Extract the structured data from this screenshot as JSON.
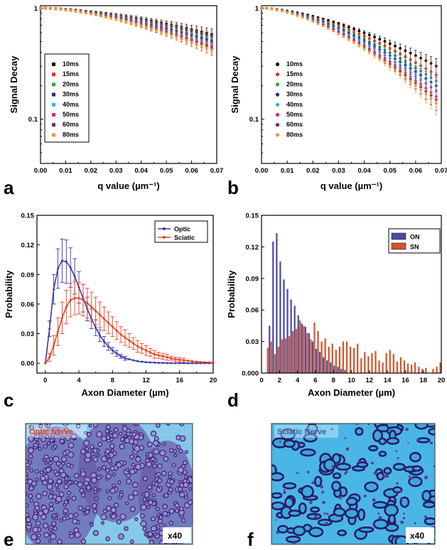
{
  "panels": {
    "a": "a",
    "b": "b",
    "c": "c",
    "d": "d",
    "e": "e",
    "f": "f"
  },
  "colors": {
    "series": [
      "#000000",
      "#e8301e",
      "#22a84a",
      "#2b2a8e",
      "#2ab3e6",
      "#e0218a",
      "#6b2a6b",
      "#f39a2a"
    ],
    "optic": "#3a3aa8",
    "sciatic": "#e84020",
    "hist_on": "#4a4aa6",
    "hist_sn": "#d2552a",
    "tissue_bg_e": "#86c8e8",
    "tissue_bg_f": "#4ab6e6",
    "tissue_cell": "#4a2e8a",
    "photo_label_e": "#e04020",
    "photo_label_f": "#3060b0"
  },
  "photos": {
    "e": {
      "label": "Optic Nerve",
      "mag": "x40"
    },
    "f": {
      "label": "Sciatic Nerve",
      "mag": "x40"
    }
  },
  "chart_data": [
    {
      "panel": "a",
      "type": "scatter",
      "scale_y": "log",
      "xlabel": "q value (µm⁻¹)",
      "ylabel": "Signal Decay",
      "xlim": [
        0.0,
        0.07
      ],
      "ylim": [
        0.04,
        1.05
      ],
      "xticks": [
        "0.00",
        "0.01",
        "0.02",
        "0.03",
        "0.04",
        "0.05",
        "0.06",
        "0.07"
      ],
      "yticks": [
        {
          "v": 1,
          "label": "1"
        },
        {
          "v": 0.1,
          "label": "0.1"
        }
      ],
      "legend": "center-left",
      "marker": "square",
      "q_start": 0.0,
      "q_step": 0.002,
      "n_points": 35,
      "series": [
        {
          "name": "10ms",
          "end_value": 0.58,
          "err": 0.07
        },
        {
          "name": "15ms",
          "end_value": 0.55,
          "err": 0.07
        },
        {
          "name": "20ms",
          "end_value": 0.52,
          "err": 0.06
        },
        {
          "name": "30ms",
          "end_value": 0.5,
          "err": 0.06
        },
        {
          "name": "40ms",
          "end_value": 0.48,
          "err": 0.06
        },
        {
          "name": "50ms",
          "end_value": 0.46,
          "err": 0.06
        },
        {
          "name": "60ms",
          "end_value": 0.44,
          "err": 0.06
        },
        {
          "name": "80ms",
          "end_value": 0.42,
          "err": 0.05
        }
      ]
    },
    {
      "panel": "b",
      "type": "scatter",
      "scale_y": "log",
      "xlabel": "q value (µm⁻¹)",
      "ylabel": "Signal Decay",
      "xlim": [
        0.0,
        0.07
      ],
      "ylim": [
        0.04,
        1.05
      ],
      "xticks": [
        "0.00",
        "0.01",
        "0.02",
        "0.03",
        "0.04",
        "0.05",
        "0.06",
        "0.07"
      ],
      "yticks": [
        {
          "v": 1,
          "label": "1"
        },
        {
          "v": 0.1,
          "label": "0.1"
        }
      ],
      "legend": "center",
      "marker": "circle",
      "q_start": 0.0,
      "q_step": 0.002,
      "n_points": 35,
      "series": [
        {
          "name": "10ms",
          "end_value": 0.3,
          "err": 0.05
        },
        {
          "name": "15ms",
          "end_value": 0.25,
          "err": 0.05
        },
        {
          "name": "20ms",
          "end_value": 0.22,
          "err": 0.04
        },
        {
          "name": "30ms",
          "end_value": 0.2,
          "err": 0.04
        },
        {
          "name": "40ms",
          "end_value": 0.18,
          "err": 0.04
        },
        {
          "name": "50ms",
          "end_value": 0.16,
          "err": 0.04
        },
        {
          "name": "60ms",
          "end_value": 0.15,
          "err": 0.03
        },
        {
          "name": "80ms",
          "end_value": 0.14,
          "err": 0.03
        }
      ]
    },
    {
      "panel": "c",
      "type": "line",
      "xlabel": "Axon Diameter (µm)",
      "ylabel": "Probability",
      "xlim": [
        -1,
        20
      ],
      "ylim": [
        -0.01,
        0.15
      ],
      "xticks": [
        0,
        4,
        8,
        12,
        16,
        20
      ],
      "yticks": [
        "0.00",
        "0.03",
        "0.06",
        "0.09",
        "0.12",
        "0.15"
      ],
      "legend": "top-right",
      "x": [
        0.0,
        0.5,
        1.0,
        1.5,
        2.0,
        2.5,
        3.0,
        3.5,
        4.0,
        4.5,
        5.0,
        5.5,
        6.0,
        6.5,
        7.0,
        7.5,
        8.0,
        8.5,
        9.0,
        9.5,
        10.0,
        10.5,
        11.0,
        11.5,
        12.0,
        12.5,
        13.0,
        13.5,
        14.0,
        14.5,
        15.0,
        15.5,
        16.0,
        16.5,
        17.0,
        17.5,
        18.0,
        18.5,
        19.0,
        19.5,
        20.0
      ],
      "series": [
        {
          "name": "Optic",
          "values": [
            0.0,
            0.035,
            0.075,
            0.096,
            0.104,
            0.103,
            0.097,
            0.088,
            0.077,
            0.066,
            0.055,
            0.045,
            0.036,
            0.028,
            0.022,
            0.017,
            0.013,
            0.01,
            0.007,
            0.005,
            0.004,
            0.003,
            0.002,
            0.0015,
            0.001,
            0.0008,
            0.0006,
            0.0004,
            0.0003,
            0.0002,
            0.0001,
            0.0001,
            0.0,
            0.0,
            0.0,
            0.0,
            0.0,
            0.0,
            0.0,
            0.0,
            0.0
          ],
          "err": [
            0.0,
            0.008,
            0.015,
            0.02,
            0.022,
            0.022,
            0.02,
            0.018,
            0.016,
            0.014,
            0.012,
            0.01,
            0.008,
            0.006,
            0.005,
            0.004,
            0.003,
            0.003,
            0.002,
            0.002,
            0.001,
            0.001,
            0.001,
            0.001,
            0.001,
            0.0,
            0.0,
            0.0,
            0.0,
            0.0,
            0.0,
            0.0,
            0.0,
            0.0,
            0.0,
            0.0,
            0.0,
            0.0,
            0.0,
            0.0,
            0.0
          ]
        },
        {
          "name": "Sciatic",
          "values": [
            0.0,
            0.006,
            0.018,
            0.032,
            0.046,
            0.057,
            0.064,
            0.066,
            0.066,
            0.064,
            0.061,
            0.057,
            0.053,
            0.049,
            0.045,
            0.041,
            0.037,
            0.033,
            0.029,
            0.026,
            0.023,
            0.02,
            0.017,
            0.015,
            0.013,
            0.011,
            0.009,
            0.008,
            0.007,
            0.006,
            0.005,
            0.004,
            0.0035,
            0.003,
            0.0025,
            0.002,
            0.0015,
            0.0012,
            0.001,
            0.0008,
            0.0006
          ],
          "err": [
            0.0,
            0.004,
            0.01,
            0.014,
            0.016,
            0.017,
            0.017,
            0.017,
            0.016,
            0.016,
            0.015,
            0.015,
            0.014,
            0.013,
            0.012,
            0.011,
            0.01,
            0.009,
            0.008,
            0.008,
            0.007,
            0.006,
            0.006,
            0.005,
            0.005,
            0.004,
            0.004,
            0.003,
            0.003,
            0.003,
            0.002,
            0.002,
            0.002,
            0.002,
            0.001,
            0.001,
            0.001,
            0.001,
            0.001,
            0.001,
            0.001
          ]
        }
      ]
    },
    {
      "panel": "d",
      "type": "bar",
      "xlabel": "Axon Diameter (µm)",
      "ylabel": "Probability",
      "xlim": [
        0,
        20
      ],
      "ylim": [
        0,
        0.15
      ],
      "xticks": [
        0,
        2,
        4,
        6,
        8,
        10,
        12,
        14,
        16,
        18,
        20
      ],
      "yticks": [
        "0.000",
        "0.03",
        "0.06",
        "0.09",
        "0.12",
        "0.15"
      ],
      "legend": "top-right",
      "bin_centers": [
        0.6,
        1.0,
        1.4,
        1.8,
        2.2,
        2.6,
        3.0,
        3.4,
        3.8,
        4.2,
        4.6,
        5.0,
        5.4,
        5.8,
        6.2,
        6.6,
        7.0,
        7.4,
        7.8,
        8.2,
        8.6,
        9.0,
        9.4,
        9.8,
        10.2,
        10.6,
        11.0,
        11.4,
        11.8,
        12.2,
        12.6,
        13.0,
        13.4,
        13.8,
        14.2,
        14.6,
        15.0,
        15.4,
        15.8,
        16.2,
        16.6,
        17.0,
        17.4,
        17.8,
        18.2,
        18.6,
        19.0,
        19.4,
        19.8
      ],
      "series": [
        {
          "name": "ON",
          "values": [
            0.0,
            0.045,
            0.125,
            0.133,
            0.106,
            0.089,
            0.08,
            0.07,
            0.064,
            0.055,
            0.047,
            0.044,
            0.038,
            0.03,
            0.023,
            0.02,
            0.015,
            0.012,
            0.01,
            0.007,
            0.006,
            0.004,
            0.003,
            0.0,
            0.0,
            0.0,
            0.0,
            0.0,
            0.0,
            0.0,
            0.0,
            0.0,
            0.0,
            0.0,
            0.0,
            0.0,
            0.0,
            0.0,
            0.0,
            0.0,
            0.0,
            0.0,
            0.0,
            0.0,
            0.0,
            0.0,
            0.0,
            0.0,
            0.0
          ]
        },
        {
          "name": "SN",
          "values": [
            0.024,
            0.03,
            0.018,
            0.025,
            0.032,
            0.033,
            0.035,
            0.04,
            0.042,
            0.05,
            0.045,
            0.038,
            0.032,
            0.048,
            0.04,
            0.03,
            0.033,
            0.025,
            0.028,
            0.022,
            0.025,
            0.03,
            0.03,
            0.025,
            0.024,
            0.028,
            0.014,
            0.02,
            0.016,
            0.019,
            0.021,
            0.012,
            0.01,
            0.019,
            0.022,
            0.018,
            0.011,
            0.015,
            0.012,
            0.009,
            0.008,
            0.01,
            0.006,
            0.004,
            0.005,
            0.0,
            0.004,
            0.006,
            0.01
          ]
        }
      ]
    }
  ]
}
